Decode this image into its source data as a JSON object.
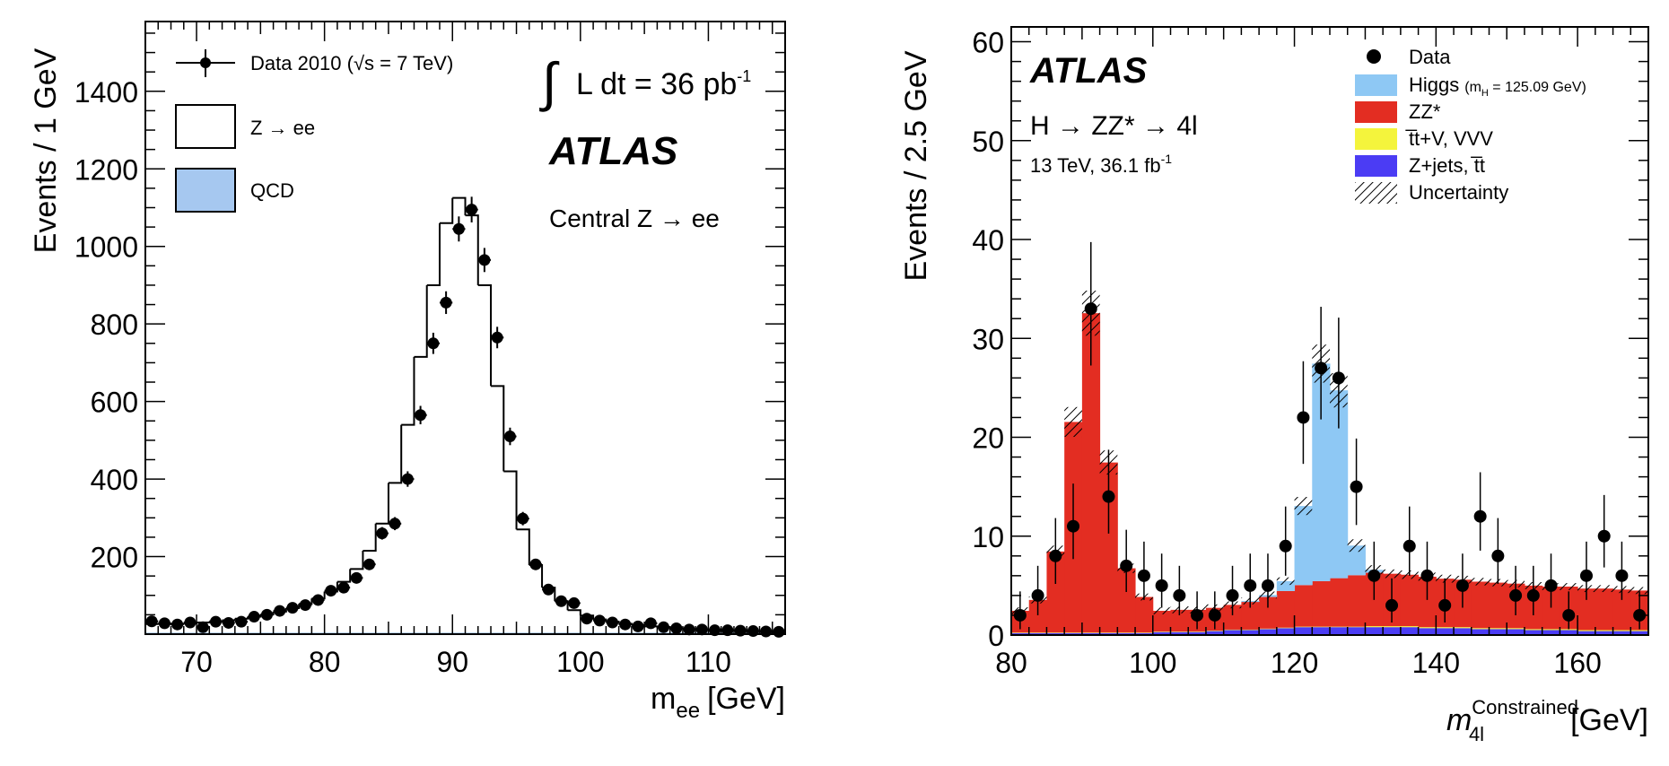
{
  "chart_data": [
    {
      "type": "bar",
      "xlabel": "m",
      "xlabel_sub": "ee",
      "xlabel_unit": "[GeV]",
      "ylabel": "Events / 1 GeV",
      "xlim": [
        66,
        116
      ],
      "ylim": [
        0,
        1580
      ],
      "xticks": [
        70,
        80,
        90,
        100,
        110
      ],
      "yticks": [
        200,
        400,
        600,
        800,
        1000,
        1200,
        1400
      ],
      "texts": {
        "lumi": "L dt = 36 pb",
        "lumi_sup": "-1",
        "atlas": "ATLAS",
        "region": "Central Z → ee"
      },
      "legend": [
        {
          "label": "Data 2010 (√s = 7 TeV)",
          "style": "data"
        },
        {
          "label": "Z → ee",
          "style": "white-box"
        },
        {
          "label": "QCD",
          "style": "blue-box"
        }
      ],
      "colors": {
        "qcd": "#a6c8f0",
        "mc_line": "#000000",
        "data": "#000000"
      },
      "series": [
        {
          "name": "Data 2010 (√s = 7 TeV)",
          "x": [
            66.5,
            67.5,
            68.5,
            69.5,
            70.5,
            71.5,
            72.5,
            73.5,
            74.5,
            75.5,
            76.5,
            77.5,
            78.5,
            79.5,
            80.5,
            81.5,
            82.5,
            83.5,
            84.5,
            85.5,
            86.5,
            87.5,
            88.5,
            89.5,
            90.5,
            91.5,
            92.5,
            93.5,
            94.5,
            95.5,
            96.5,
            97.5,
            98.5,
            99.5,
            100.5,
            101.5,
            102.5,
            103.5,
            104.5,
            105.5,
            106.5,
            107.5,
            108.5,
            109.5,
            110.5,
            111.5,
            112.5,
            113.5,
            114.5,
            115.5
          ],
          "values": [
            33,
            28,
            25,
            30,
            18,
            32,
            29,
            32,
            45,
            50,
            60,
            68,
            75,
            88,
            112,
            120,
            145,
            180,
            260,
            285,
            400,
            565,
            750,
            855,
            1045,
            1095,
            965,
            765,
            510,
            298,
            180,
            115,
            85,
            80,
            40,
            35,
            30,
            25,
            20,
            28,
            18,
            15,
            12,
            12,
            10,
            10,
            9,
            8,
            7,
            6
          ]
        },
        {
          "name": "Z → ee",
          "x": [
            66.5,
            67.5,
            68.5,
            69.5,
            70.5,
            71.5,
            72.5,
            73.5,
            74.5,
            75.5,
            76.5,
            77.5,
            78.5,
            79.5,
            80.5,
            81.5,
            82.5,
            83.5,
            84.5,
            85.5,
            86.5,
            87.5,
            88.5,
            89.5,
            90.5,
            91.5,
            92.5,
            93.5,
            94.5,
            95.5,
            96.5,
            97.5,
            98.5,
            99.5,
            100.5,
            101.5,
            102.5,
            103.5,
            104.5,
            105.5,
            106.5,
            107.5,
            108.5,
            109.5,
            110.5,
            111.5,
            112.5,
            113.5,
            114.5,
            115.5
          ],
          "values": [
            26,
            26,
            27,
            28,
            30,
            33,
            36,
            40,
            45,
            51,
            58,
            67,
            78,
            92,
            110,
            135,
            168,
            215,
            285,
            390,
            540,
            715,
            900,
            1060,
            1125,
            1080,
            900,
            640,
            420,
            270,
            178,
            120,
            85,
            62,
            48,
            38,
            32,
            27,
            23,
            20,
            17,
            15,
            13,
            12,
            11,
            10,
            9,
            8,
            7,
            7
          ]
        },
        {
          "name": "QCD",
          "x": [
            66.5,
            67.5,
            68.5,
            69.5,
            70.5,
            71.5,
            72.5,
            73.5,
            74.5,
            75.5,
            76.5,
            77.5,
            78.5,
            79.5,
            80.5,
            81.5,
            82.5,
            83.5,
            84.5,
            85.5,
            86.5,
            87.5,
            88.5,
            89.5,
            90.5,
            91.5,
            92.5,
            93.5,
            94.5,
            95.5,
            96.5,
            97.5,
            98.5,
            99.5,
            100.5,
            101.5,
            102.5,
            103.5,
            104.5,
            105.5,
            106.5,
            107.5,
            108.5,
            109.5,
            110.5,
            111.5,
            112.5,
            113.5,
            114.5,
            115.5
          ],
          "values": [
            4,
            4,
            4,
            4,
            4,
            4,
            4,
            4,
            4,
            4,
            4,
            4,
            4,
            4,
            4,
            4,
            4,
            4,
            4,
            4,
            4,
            4,
            4,
            4,
            4,
            4,
            4,
            4,
            4,
            4,
            4,
            4,
            4,
            4,
            4,
            4,
            4,
            4,
            4,
            4,
            4,
            4,
            4,
            4,
            4,
            4,
            4,
            4,
            4,
            4
          ]
        }
      ]
    },
    {
      "type": "bar",
      "xlabel": "m",
      "xlabel_sup": "Constrained",
      "xlabel_sub": "4l",
      "xlabel_unit": "[GeV]",
      "ylabel": "Events / 2.5 GeV",
      "xlim": [
        80,
        170
      ],
      "ylim": [
        0,
        61.5
      ],
      "xticks": [
        80,
        100,
        120,
        140,
        160
      ],
      "yticks": [
        0,
        10,
        20,
        30,
        40,
        50,
        60
      ],
      "texts": {
        "atlas": "ATLAS",
        "channel": "H → ZZ* → 4l",
        "energy": "13 TeV, 36.1 fb",
        "energy_sup": "-1"
      },
      "legend": [
        {
          "label": "Data",
          "style": "data"
        },
        {
          "label": "Higgs",
          "note": "(m",
          "note_sub": "H",
          "note_tail": " = 125.09 GeV)",
          "style": "box",
          "color": "#8ec8f4"
        },
        {
          "label": "ZZ*",
          "style": "box",
          "color": "#e32d22"
        },
        {
          "label": "t̅t+V, VVV",
          "style": "box",
          "color": "#f4f43c"
        },
        {
          "label": "Z+jets, t̅t",
          "style": "box",
          "color": "#4b3cf4"
        },
        {
          "label": "Uncertainty",
          "style": "hatch"
        }
      ],
      "colors": {
        "higgs": "#8ec8f4",
        "zz": "#e32d22",
        "ttv": "#f4f43c",
        "zjets": "#4b3cf4",
        "data": "#000000"
      },
      "bin_edges": [
        80,
        82.5,
        85,
        87.5,
        90,
        92.5,
        95,
        97.5,
        100,
        102.5,
        105,
        107.5,
        110,
        112.5,
        115,
        117.5,
        120,
        122.5,
        125,
        127.5,
        130,
        132.5,
        135,
        137.5,
        140,
        142.5,
        145,
        147.5,
        150,
        152.5,
        155,
        157.5,
        160,
        162.5,
        165,
        167.5,
        170
      ],
      "series": [
        {
          "name": "Z+jets, t̅t",
          "values": [
            0.2,
            0.2,
            0.2,
            0.2,
            0.2,
            0.2,
            0.2,
            0.2,
            0.3,
            0.3,
            0.3,
            0.4,
            0.5,
            0.5,
            0.6,
            0.7,
            0.8,
            0.8,
            0.8,
            0.8,
            0.8,
            0.8,
            0.8,
            0.7,
            0.7,
            0.7,
            0.6,
            0.6,
            0.6,
            0.5,
            0.5,
            0.5,
            0.4,
            0.4,
            0.4,
            0.4
          ]
        },
        {
          "name": "t̅t+V, VVV",
          "values": [
            0.05,
            0.05,
            0.05,
            0.05,
            0.05,
            0.05,
            0.05,
            0.05,
            0.05,
            0.05,
            0.05,
            0.05,
            0.05,
            0.05,
            0.05,
            0.05,
            0.05,
            0.05,
            0.05,
            0.05,
            0.1,
            0.1,
            0.1,
            0.1,
            0.1,
            0.1,
            0.1,
            0.1,
            0.1,
            0.1,
            0.1,
            0.1,
            0.1,
            0.1,
            0.1,
            0.1
          ]
        },
        {
          "name": "ZZ*",
          "values": [
            2.2,
            3.3,
            8.2,
            21.3,
            32.3,
            17.2,
            6.5,
            3.6,
            2.1,
            2.2,
            2.2,
            2.3,
            2.5,
            2.8,
            3.2,
            3.7,
            4.2,
            4.6,
            4.9,
            5.2,
            5.4,
            5.3,
            5.2,
            5.1,
            4.9,
            4.8,
            4.7,
            4.6,
            4.5,
            4.4,
            4.3,
            4.3,
            4.2,
            4.2,
            4.1,
            4.0
          ]
        },
        {
          "name": "Higgs",
          "values": [
            0,
            0,
            0,
            0,
            0,
            0,
            0,
            0,
            0,
            0,
            0,
            0,
            0,
            0.1,
            0.2,
            1.0,
            8.0,
            22.0,
            19.0,
            3.0,
            0.3,
            0,
            0,
            0,
            0,
            0,
            0,
            0,
            0,
            0,
            0,
            0,
            0,
            0,
            0,
            0
          ]
        },
        {
          "name": "Data",
          "x": [
            81.25,
            83.75,
            86.25,
            88.75,
            91.25,
            93.75,
            96.25,
            98.75,
            101.25,
            103.75,
            106.25,
            108.75,
            111.25,
            113.75,
            116.25,
            118.75,
            121.25,
            123.75,
            126.25,
            128.75,
            131.25,
            133.75,
            136.25,
            138.75,
            141.25,
            143.75,
            146.25,
            148.75,
            151.25,
            153.75,
            156.25,
            158.75,
            161.25,
            163.75,
            166.25,
            168.75
          ],
          "values": [
            2,
            4,
            8,
            11,
            33,
            14,
            7,
            6,
            5,
            4,
            2,
            2,
            4,
            5,
            5,
            9,
            22,
            27,
            26,
            15,
            6,
            3,
            9,
            6,
            3,
            5,
            12,
            8,
            4,
            4,
            5,
            2,
            6,
            10,
            6,
            2
          ]
        }
      ]
    }
  ]
}
